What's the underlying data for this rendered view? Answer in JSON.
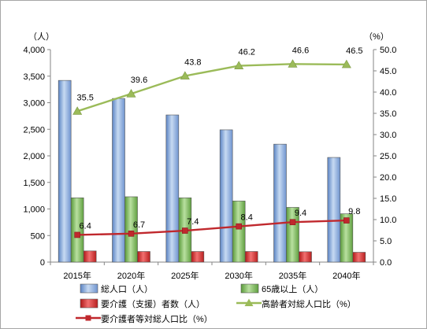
{
  "chart_data": {
    "type": "bar",
    "categories": [
      "2015年",
      "2020年",
      "2025年",
      "2030年",
      "2035年",
      "2040年"
    ],
    "y_left": {
      "unit_label": "（人）",
      "ylim": [
        0,
        4000
      ],
      "ticks": [
        "0",
        "500",
        "1,000",
        "1,500",
        "2,000",
        "2,500",
        "3,000",
        "3,500",
        "4,000"
      ]
    },
    "y_right": {
      "unit_label": "（%）",
      "ylim": [
        0,
        50
      ],
      "ticks": [
        "0.0",
        "5.0",
        "10.0",
        "15.0",
        "20.0",
        "25.0",
        "30.0",
        "35.0",
        "40.0",
        "45.0",
        "50.0"
      ]
    },
    "series": [
      {
        "name": "総人口（人）",
        "kind": "bar",
        "axis": "left",
        "color": "#8fb4e3",
        "values": [
          3420,
          3080,
          2770,
          2490,
          2220,
          1970
        ]
      },
      {
        "name": "65歳以上（人）",
        "kind": "bar",
        "axis": "left",
        "color": "#70b050",
        "values": [
          1210,
          1230,
          1210,
          1150,
          1030,
          910
        ]
      },
      {
        "name": "要介護（支援）者数（人）",
        "kind": "bar",
        "axis": "left",
        "color": "#d92020",
        "values": [
          210,
          200,
          200,
          200,
          195,
          185
        ]
      },
      {
        "name": "高齢者対総人口比（%）",
        "kind": "line",
        "axis": "right",
        "color": "#9bbb59",
        "marker": "triangle",
        "values": [
          35.5,
          39.6,
          43.8,
          46.2,
          46.6,
          46.5
        ],
        "labels": [
          "35.5",
          "39.6",
          "43.8",
          "46.2",
          "46.6",
          "46.5"
        ]
      },
      {
        "name": "要介護者等対総人口比（%）",
        "kind": "line",
        "axis": "right",
        "color": "#c0282d",
        "marker": "square",
        "values": [
          6.4,
          6.7,
          7.4,
          8.4,
          9.4,
          9.8
        ],
        "labels": [
          "6.4",
          "6.7",
          "7.4",
          "8.4",
          "9.4",
          "9.8"
        ]
      }
    ],
    "legend": "bottom",
    "grid": false
  }
}
